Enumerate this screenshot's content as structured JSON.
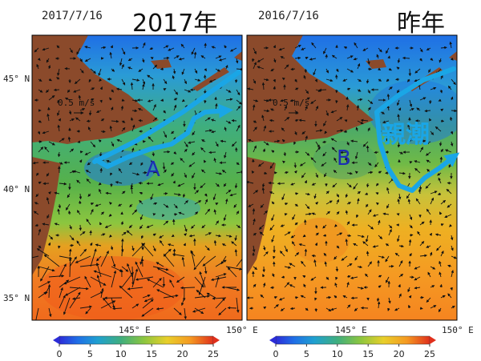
{
  "panels": [
    {
      "date": "2017/7/16",
      "title": "2017年",
      "eddy_label": "A",
      "scale_label": "0.5 m/s",
      "current_label": ""
    },
    {
      "date": "2016/7/16",
      "title": "昨年",
      "eddy_label": "B",
      "scale_label": "0.5 m/s",
      "current_label": "親潮"
    }
  ],
  "axes": {
    "lat_labels": [
      "45° N",
      "40° N",
      "35° N"
    ],
    "lon_labels_left": [
      "145° E",
      "150° E"
    ],
    "lon_labels_right": [
      "145° E",
      "150° E"
    ]
  },
  "colorbar": {
    "ticks": [
      "0",
      "5",
      "10",
      "15",
      "20",
      "25"
    ],
    "range": [
      0,
      25
    ]
  },
  "colors": {
    "land": "#8B4A2B",
    "arrow": "#111111",
    "current": "#1aa6e6",
    "label": "#1c2fb4"
  }
}
